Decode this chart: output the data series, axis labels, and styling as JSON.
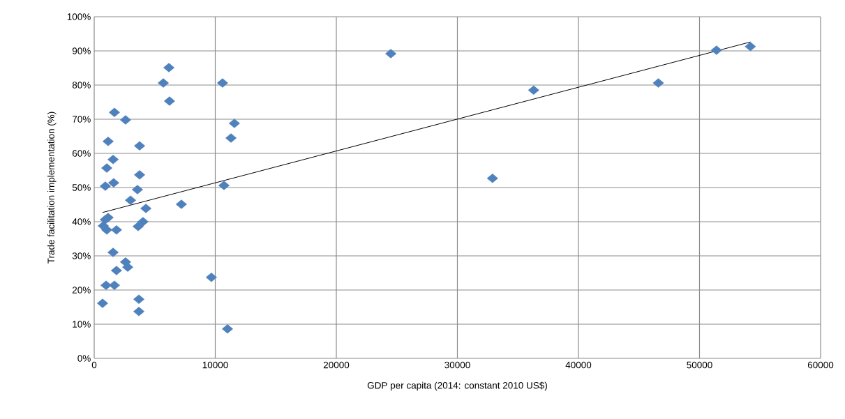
{
  "chart_data": {
    "type": "scatter",
    "xlabel": "GDP per capita (2014: constant 2010 US$)",
    "ylabel": "Trade facilitation implementation (%)",
    "xlim": [
      0,
      60000
    ],
    "xticks": [
      0,
      10000,
      20000,
      30000,
      40000,
      50000,
      60000
    ],
    "ylim": [
      0,
      100
    ],
    "yticks": [
      {
        "value": 0,
        "label": "0%"
      },
      {
        "value": 10,
        "label": "10%"
      },
      {
        "value": 20,
        "label": "20%"
      },
      {
        "value": 30,
        "label": "30%"
      },
      {
        "value": 40,
        "label": "40%"
      },
      {
        "value": 50,
        "label": "50%"
      },
      {
        "value": 60,
        "label": "60%"
      },
      {
        "value": 70,
        "label": "70%"
      },
      {
        "value": 80,
        "label": "80%"
      },
      {
        "value": 90,
        "label": "90%"
      },
      {
        "value": 100,
        "label": "100%"
      }
    ],
    "grid": true,
    "series": [
      {
        "marker": "diamond",
        "color": "#4f81bd",
        "x": [
          6170,
          5710,
          10600,
          6220,
          1670,
          2590,
          11580,
          11300,
          1150,
          3750,
          1560,
          1040,
          3750,
          1610,
          920,
          10720,
          3570,
          3000,
          7200,
          4270,
          1150,
          920,
          750,
          1040,
          1840,
          4030,
          3630,
          1560,
          2590,
          2770,
          1840,
          9680,
          980,
          1670,
          690,
          3690,
          3690,
          11010,
          24500,
          36300,
          32900,
          46600,
          51400,
          54200
        ],
        "values": [
          85.1,
          80.6,
          80.6,
          75.3,
          72.0,
          69.8,
          68.8,
          64.5,
          63.5,
          62.2,
          58.2,
          55.7,
          53.7,
          51.4,
          50.4,
          50.6,
          49.4,
          46.3,
          45.1,
          43.9,
          41.2,
          40.6,
          38.8,
          37.6,
          37.6,
          40.0,
          38.6,
          31.0,
          28.2,
          26.7,
          25.7,
          23.7,
          21.4,
          21.4,
          16.1,
          17.3,
          13.7,
          8.6,
          89.2,
          78.5,
          52.7,
          80.6,
          90.2,
          91.3
        ]
      },
      {
        "type": "line",
        "marker": "none",
        "color": "#000000",
        "x": [
          690,
          54200
        ],
        "values": [
          42.7,
          92.6
        ]
      }
    ]
  }
}
